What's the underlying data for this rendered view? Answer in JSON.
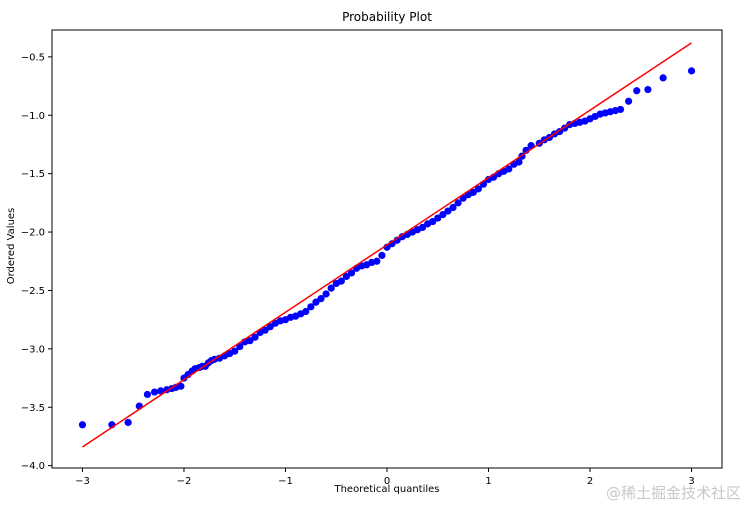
{
  "chart_data": {
    "type": "scatter",
    "title": "Probability Plot",
    "xlabel": "Theoretical quantiles",
    "ylabel": "Ordered Values",
    "xlim": [
      -3.3,
      3.3
    ],
    "ylim": [
      -4.02,
      -0.27
    ],
    "xticks": [
      -3,
      -2,
      -1,
      0,
      1,
      2,
      3
    ],
    "xtick_labels": [
      "−3",
      "−2",
      "−1",
      "0",
      "1",
      "2",
      "3"
    ],
    "yticks": [
      -4.0,
      -3.5,
      -3.0,
      -2.5,
      -2.0,
      -1.5,
      -1.0,
      -0.5
    ],
    "ytick_labels": [
      "−4.0",
      "−3.5",
      "−3.0",
      "−2.5",
      "−2.0",
      "−1.5",
      "−1.0",
      "−0.5"
    ],
    "grid": false,
    "series": [
      {
        "kind": "scatter",
        "color": "#0000ff",
        "points": [
          [
            -3.0,
            -3.65
          ],
          [
            -2.71,
            -3.65
          ],
          [
            -2.55,
            -3.63
          ],
          [
            -2.44,
            -3.49
          ],
          [
            -2.36,
            -3.39
          ],
          [
            -2.29,
            -3.37
          ],
          [
            -2.23,
            -3.36
          ],
          [
            -2.17,
            -3.35
          ],
          [
            -2.12,
            -3.34
          ],
          [
            -2.08,
            -3.33
          ],
          [
            -2.03,
            -3.32
          ],
          [
            -2.0,
            -3.25
          ],
          [
            -1.96,
            -3.22
          ],
          [
            -1.92,
            -3.19
          ],
          [
            -1.89,
            -3.17
          ],
          [
            -1.85,
            -3.16
          ],
          [
            -1.82,
            -3.15
          ],
          [
            -1.79,
            -3.15
          ],
          [
            -1.76,
            -3.12
          ],
          [
            -1.73,
            -3.1
          ],
          [
            -1.7,
            -3.09
          ],
          [
            -1.65,
            -3.08
          ],
          [
            -1.6,
            -3.06
          ],
          [
            -1.55,
            -3.04
          ],
          [
            -1.5,
            -3.02
          ],
          [
            -1.45,
            -2.98
          ],
          [
            -1.4,
            -2.94
          ],
          [
            -1.35,
            -2.93
          ],
          [
            -1.3,
            -2.9
          ],
          [
            -1.25,
            -2.86
          ],
          [
            -1.2,
            -2.84
          ],
          [
            -1.15,
            -2.81
          ],
          [
            -1.1,
            -2.78
          ],
          [
            -1.05,
            -2.76
          ],
          [
            -1.0,
            -2.75
          ],
          [
            -0.95,
            -2.73
          ],
          [
            -0.9,
            -2.72
          ],
          [
            -0.85,
            -2.7
          ],
          [
            -0.8,
            -2.68
          ],
          [
            -0.75,
            -2.64
          ],
          [
            -0.7,
            -2.6
          ],
          [
            -0.65,
            -2.57
          ],
          [
            -0.6,
            -2.53
          ],
          [
            -0.55,
            -2.48
          ],
          [
            -0.5,
            -2.44
          ],
          [
            -0.45,
            -2.42
          ],
          [
            -0.4,
            -2.38
          ],
          [
            -0.35,
            -2.35
          ],
          [
            -0.3,
            -2.31
          ],
          [
            -0.25,
            -2.29
          ],
          [
            -0.2,
            -2.28
          ],
          [
            -0.15,
            -2.26
          ],
          [
            -0.1,
            -2.25
          ],
          [
            -0.05,
            -2.2
          ],
          [
            0.0,
            -2.13
          ],
          [
            0.05,
            -2.1
          ],
          [
            0.1,
            -2.07
          ],
          [
            0.15,
            -2.04
          ],
          [
            0.2,
            -2.02
          ],
          [
            0.25,
            -2.0
          ],
          [
            0.3,
            -1.98
          ],
          [
            0.35,
            -1.96
          ],
          [
            0.4,
            -1.93
          ],
          [
            0.45,
            -1.91
          ],
          [
            0.5,
            -1.88
          ],
          [
            0.55,
            -1.85
          ],
          [
            0.6,
            -1.82
          ],
          [
            0.65,
            -1.79
          ],
          [
            0.7,
            -1.75
          ],
          [
            0.75,
            -1.71
          ],
          [
            0.8,
            -1.68
          ],
          [
            0.85,
            -1.66
          ],
          [
            0.9,
            -1.63
          ],
          [
            0.95,
            -1.59
          ],
          [
            1.0,
            -1.55
          ],
          [
            1.05,
            -1.53
          ],
          [
            1.1,
            -1.5
          ],
          [
            1.15,
            -1.48
          ],
          [
            1.2,
            -1.46
          ],
          [
            1.25,
            -1.42
          ],
          [
            1.3,
            -1.4
          ],
          [
            1.33,
            -1.35
          ],
          [
            1.37,
            -1.3
          ],
          [
            1.42,
            -1.26
          ],
          [
            1.5,
            -1.24
          ],
          [
            1.55,
            -1.21
          ],
          [
            1.6,
            -1.19
          ],
          [
            1.65,
            -1.16
          ],
          [
            1.7,
            -1.14
          ],
          [
            1.75,
            -1.11
          ],
          [
            1.8,
            -1.08
          ],
          [
            1.85,
            -1.07
          ],
          [
            1.9,
            -1.06
          ],
          [
            1.95,
            -1.05
          ],
          [
            2.0,
            -1.03
          ],
          [
            2.05,
            -1.01
          ],
          [
            2.1,
            -0.99
          ],
          [
            2.15,
            -0.98
          ],
          [
            2.2,
            -0.97
          ],
          [
            2.25,
            -0.96
          ],
          [
            2.3,
            -0.95
          ],
          [
            2.38,
            -0.88
          ],
          [
            2.46,
            -0.79
          ],
          [
            2.57,
            -0.78
          ],
          [
            2.72,
            -0.68
          ],
          [
            3.0,
            -0.62
          ]
        ]
      },
      {
        "kind": "line",
        "color": "#ff0000",
        "points": [
          [
            -3.0,
            -3.84
          ],
          [
            3.0,
            -0.38
          ]
        ]
      }
    ]
  },
  "watermark": "@稀土掘金技术社区"
}
